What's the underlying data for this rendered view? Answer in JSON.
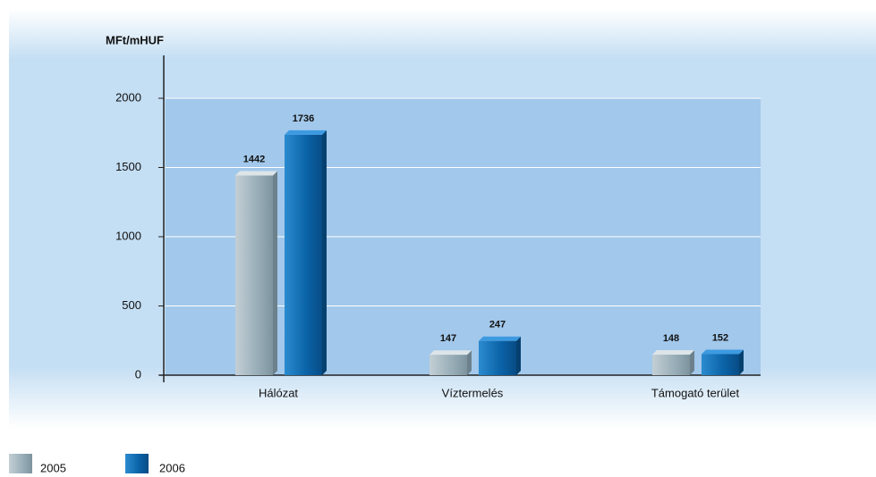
{
  "chart_data": {
    "type": "bar",
    "y_label": "MFt/mHUF",
    "categories": [
      "Hálózat",
      "Víztermelés",
      "Támogató terület"
    ],
    "series": [
      {
        "name": "2005",
        "color": "#8fa6b1",
        "values": [
          1442,
          147,
          148
        ]
      },
      {
        "name": "2006",
        "color": "#0b62a6",
        "values": [
          1736,
          247,
          152
        ]
      }
    ],
    "ylim": [
      0,
      2000
    ],
    "yticks": [
      0,
      500,
      1000,
      1500,
      2000
    ],
    "grid": true
  }
}
